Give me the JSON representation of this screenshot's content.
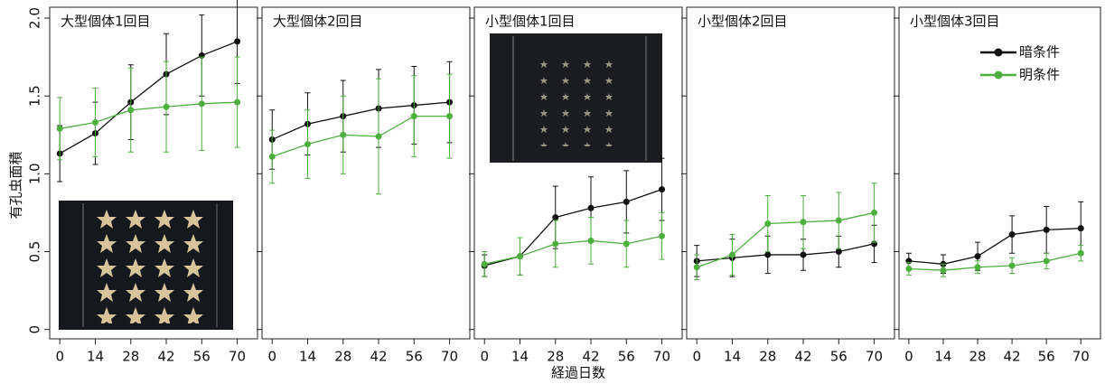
{
  "chart_data": [
    {
      "type": "line",
      "title": "大型個体1回目",
      "ylabel": "有孔虫面積",
      "x": [
        0,
        14,
        28,
        42,
        56,
        70
      ],
      "xlim": [
        -4,
        78
      ],
      "xticks": [
        0,
        14,
        28,
        42,
        56,
        70
      ],
      "ylim": [
        -0.06,
        2.07
      ],
      "yticks": [
        0,
        0.5,
        {
          "value": 1,
          "label": "1.0"
        },
        1.5,
        {
          "value": 2,
          "label": "2.0"
        }
      ],
      "series": [
        {
          "color": "#111111",
          "values": [
            1.13,
            1.26,
            1.46,
            1.64,
            1.76,
            1.85
          ],
          "errors": [
            0.18,
            0.2,
            0.24,
            0.26,
            0.26,
            0.27
          ]
        },
        {
          "color": "#4caf3e",
          "values": [
            1.29,
            1.33,
            1.41,
            1.43,
            1.45,
            1.46
          ],
          "errors": [
            0.2,
            0.22,
            0.27,
            0.29,
            0.3,
            0.29
          ]
        }
      ]
    },
    {
      "type": "line",
      "title": "大型個体2回目",
      "x": [
        0,
        14,
        28,
        42,
        56,
        70
      ],
      "xlim": [
        -4,
        78
      ],
      "xticks": [
        0,
        14,
        28,
        42,
        56,
        70
      ],
      "ylim": [
        -0.06,
        2.07
      ],
      "yticks": [
        0,
        0.5,
        1,
        1.5,
        2
      ],
      "series": [
        {
          "color": "#111111",
          "values": [
            1.22,
            1.32,
            1.37,
            1.42,
            1.44,
            1.46
          ],
          "errors": [
            0.19,
            0.2,
            0.23,
            0.25,
            0.25,
            0.26
          ]
        },
        {
          "color": "#4caf3e",
          "values": [
            1.11,
            1.19,
            1.25,
            1.24,
            1.37,
            1.37
          ],
          "errors": [
            0.17,
            0.22,
            0.25,
            0.37,
            0.26,
            0.27
          ]
        }
      ]
    },
    {
      "type": "line",
      "title": "小型個体1回目",
      "xlabel": "経過日数",
      "x": [
        0,
        14,
        28,
        42,
        56,
        70
      ],
      "xlim": [
        -4,
        78
      ],
      "xticks": [
        0,
        14,
        28,
        42,
        56,
        70
      ],
      "ylim": [
        -0.06,
        2.07
      ],
      "yticks": [
        0,
        0.5,
        1,
        1.5,
        2
      ],
      "series": [
        {
          "color": "#111111",
          "values": [
            0.41,
            0.47,
            0.72,
            0.78,
            0.82,
            0.9
          ],
          "errors": [
            0.07,
            0.12,
            0.2,
            0.2,
            0.2,
            0.2
          ]
        },
        {
          "color": "#4caf3e",
          "values": [
            0.42,
            0.47,
            0.55,
            0.57,
            0.55,
            0.6
          ],
          "errors": [
            0.08,
            0.12,
            0.15,
            0.15,
            0.15,
            0.15
          ]
        }
      ]
    },
    {
      "type": "line",
      "title": "小型個体2回目",
      "x": [
        0,
        14,
        28,
        42,
        56,
        70
      ],
      "xlim": [
        -4,
        78
      ],
      "xticks": [
        0,
        14,
        28,
        42,
        56,
        70
      ],
      "ylim": [
        -0.06,
        2.07
      ],
      "yticks": [
        0,
        0.5,
        1,
        1.5,
        2
      ],
      "series": [
        {
          "color": "#111111",
          "values": [
            0.44,
            0.46,
            0.48,
            0.48,
            0.5,
            0.55
          ],
          "errors": [
            0.1,
            0.12,
            0.12,
            0.1,
            0.1,
            0.12
          ]
        },
        {
          "color": "#4caf3e",
          "values": [
            0.4,
            0.48,
            0.68,
            0.69,
            0.7,
            0.75
          ],
          "errors": [
            0.08,
            0.13,
            0.18,
            0.17,
            0.18,
            0.19
          ]
        }
      ]
    },
    {
      "type": "line",
      "title": "小型個体3回目",
      "legend": "upper right",
      "x": [
        0,
        14,
        28,
        42,
        56,
        70
      ],
      "xlim": [
        -4,
        78
      ],
      "xticks": [
        0,
        14,
        28,
        42,
        56,
        70
      ],
      "ylim": [
        -0.06,
        2.07
      ],
      "yticks": [
        0,
        0.5,
        1,
        1.5,
        2
      ],
      "series": [
        {
          "name": "暗条件",
          "color": "#111111",
          "values": [
            0.44,
            0.42,
            0.47,
            0.61,
            0.64,
            0.65
          ],
          "errors": [
            0.05,
            0.06,
            0.09,
            0.12,
            0.15,
            0.17
          ]
        },
        {
          "name": "明条件",
          "color": "#4caf3e",
          "values": [
            0.39,
            0.38,
            0.4,
            0.41,
            0.44,
            0.49
          ],
          "errors": [
            0.04,
            0.04,
            0.04,
            0.05,
            0.05,
            0.05
          ]
        }
      ]
    }
  ]
}
